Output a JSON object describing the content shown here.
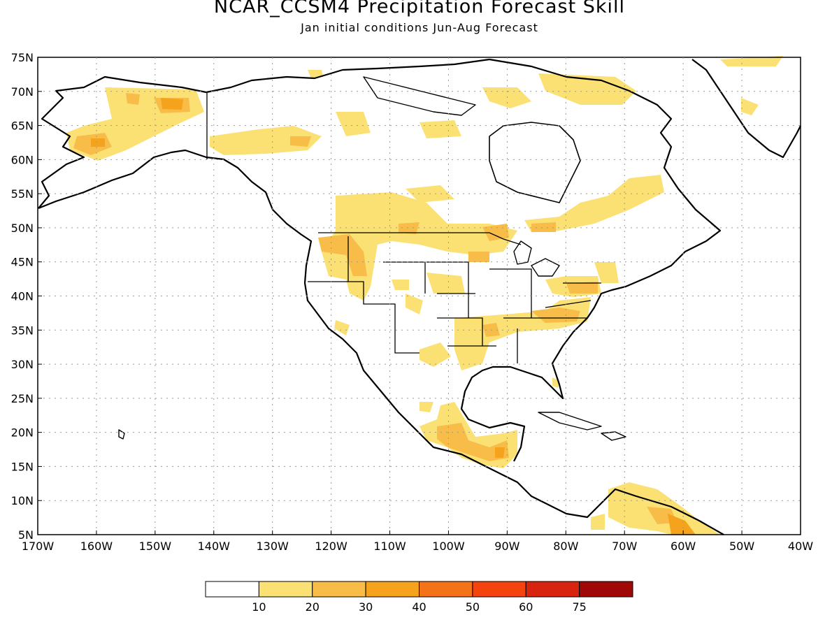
{
  "header": {
    "title": "NCAR_CCSM4 Precipitation Forecast Skill",
    "subtitle": "Jan initial conditions  Jun-Aug Forecast"
  },
  "map": {
    "lon_range": [
      -170,
      -40
    ],
    "lat_range": [
      5,
      75
    ],
    "lat_ticks": [
      "75N",
      "70N",
      "65N",
      "60N",
      "55N",
      "50N",
      "45N",
      "40N",
      "35N",
      "30N",
      "25N",
      "20N",
      "15N",
      "10N",
      "5N"
    ],
    "lon_ticks": [
      "170W",
      "160W",
      "150W",
      "140W",
      "130W",
      "120W",
      "110W",
      "100W",
      "90W",
      "80W",
      "70W",
      "60W",
      "50W",
      "40W"
    ],
    "grid": "dotted"
  },
  "legend": {
    "colors": [
      "#ffffff",
      "#fbe174",
      "#f8bc49",
      "#f5a21c",
      "#f47218",
      "#f5430f",
      "#d8230f",
      "#a00808"
    ],
    "labels": [
      "10",
      "20",
      "30",
      "40",
      "50",
      "60",
      "75"
    ]
  }
}
